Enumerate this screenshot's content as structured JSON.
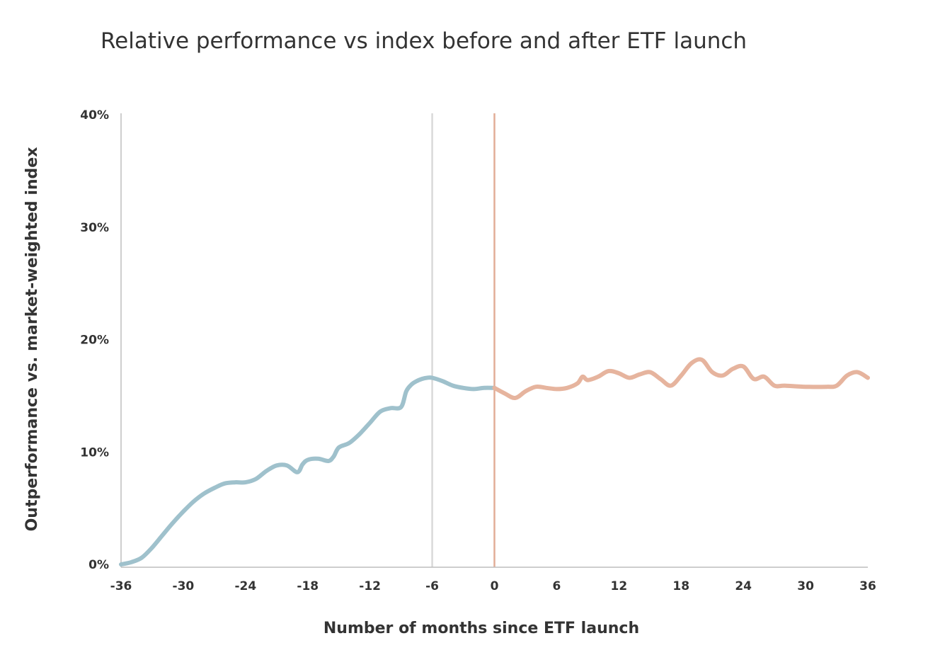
{
  "chart_data": {
    "type": "line",
    "title": "Relative performance vs index before and after ETF launch",
    "xlabel": "Number of months since ETF launch",
    "ylabel": "Outperformance vs. market-weighted index",
    "xlim": [
      -36,
      36
    ],
    "ylim": [
      0,
      40
    ],
    "x_ticks": [
      "-36",
      "-30",
      "-24",
      "-18",
      "-12",
      "-6",
      "0",
      "6",
      "12",
      "18",
      "24",
      "30",
      "36"
    ],
    "y_ticks": [
      "0%",
      "10%",
      "20%",
      "30%",
      "40%"
    ],
    "reference_lines": [
      {
        "x": -6,
        "color": "#d9d9d9"
      },
      {
        "x": 0,
        "color": "#e2ad97"
      }
    ],
    "series": [
      {
        "color": "#9fc1cc",
        "x": [
          -36,
          -35,
          -34,
          -33,
          -32,
          -31,
          -30,
          -29,
          -28,
          -27,
          -26,
          -25,
          -24,
          -23,
          -22,
          -21,
          -20,
          -19,
          -18.5,
          -18,
          -17,
          -16,
          -15.5,
          -15,
          -14,
          -13,
          -12,
          -11,
          -10,
          -9,
          -8.5,
          -8,
          -7.5,
          -7,
          -6.5,
          -6,
          -5,
          -4,
          -3,
          -2,
          -1,
          0
        ],
        "y": [
          0,
          0.2,
          0.6,
          1.5,
          2.6,
          3.7,
          4.7,
          5.6,
          6.3,
          6.8,
          7.2,
          7.3,
          7.3,
          7.6,
          8.3,
          8.8,
          8.8,
          8.2,
          8.9,
          9.3,
          9.4,
          9.2,
          9.6,
          10.4,
          10.8,
          11.6,
          12.6,
          13.6,
          13.9,
          14.0,
          15.4,
          16.0,
          16.3,
          16.5,
          16.6,
          16.6,
          16.3,
          15.9,
          15.7,
          15.6,
          15.7,
          15.7
        ]
      },
      {
        "color": "#e6b49e",
        "x": [
          0,
          1,
          2,
          3,
          4,
          5,
          6,
          7,
          8,
          8.5,
          9,
          10,
          11,
          12,
          13,
          14,
          15,
          16,
          17,
          18,
          19,
          20,
          21,
          22,
          23,
          24,
          25,
          26,
          27,
          28,
          30,
          32,
          33,
          34,
          35,
          36
        ],
        "y": [
          15.7,
          15.2,
          14.8,
          15.4,
          15.8,
          15.7,
          15.6,
          15.7,
          16.1,
          16.7,
          16.4,
          16.7,
          17.2,
          17.0,
          16.6,
          16.9,
          17.1,
          16.5,
          15.9,
          16.8,
          17.9,
          18.2,
          17.1,
          16.8,
          17.4,
          17.6,
          16.5,
          16.7,
          15.9,
          15.9,
          15.8,
          15.8,
          15.9,
          16.8,
          17.1,
          16.6
        ]
      }
    ]
  }
}
